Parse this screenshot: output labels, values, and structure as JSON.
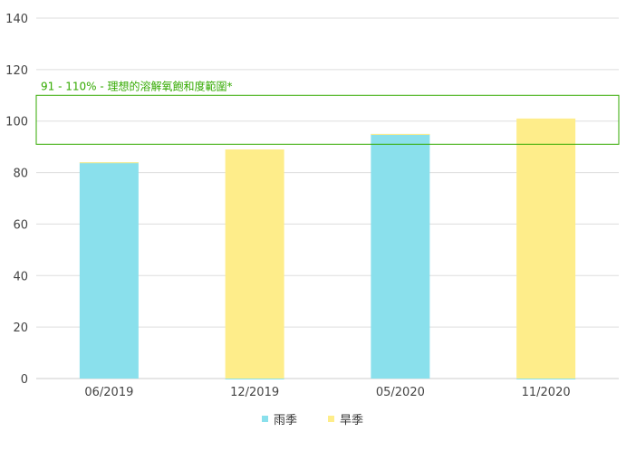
{
  "chart_data": {
    "type": "bar",
    "stacked": true,
    "categories": [
      "06/2019",
      "12/2019",
      "05/2020",
      "11/2020"
    ],
    "series": [
      {
        "name": "雨季",
        "color": "#8ae0ec",
        "values": [
          84,
          0,
          95,
          0
        ]
      },
      {
        "name": "旱季",
        "color": "#feed8a",
        "values": [
          0,
          89,
          0,
          101
        ]
      }
    ],
    "ylim": [
      0,
      140
    ],
    "yticks": [
      0,
      20,
      40,
      60,
      80,
      100,
      120,
      140
    ],
    "grid": true,
    "legend": "bottom",
    "band": {
      "from": 91,
      "to": 110,
      "label": "91 - 110% - 理想的溶解氧飽和度範圍*",
      "color": "#33aa00"
    }
  }
}
